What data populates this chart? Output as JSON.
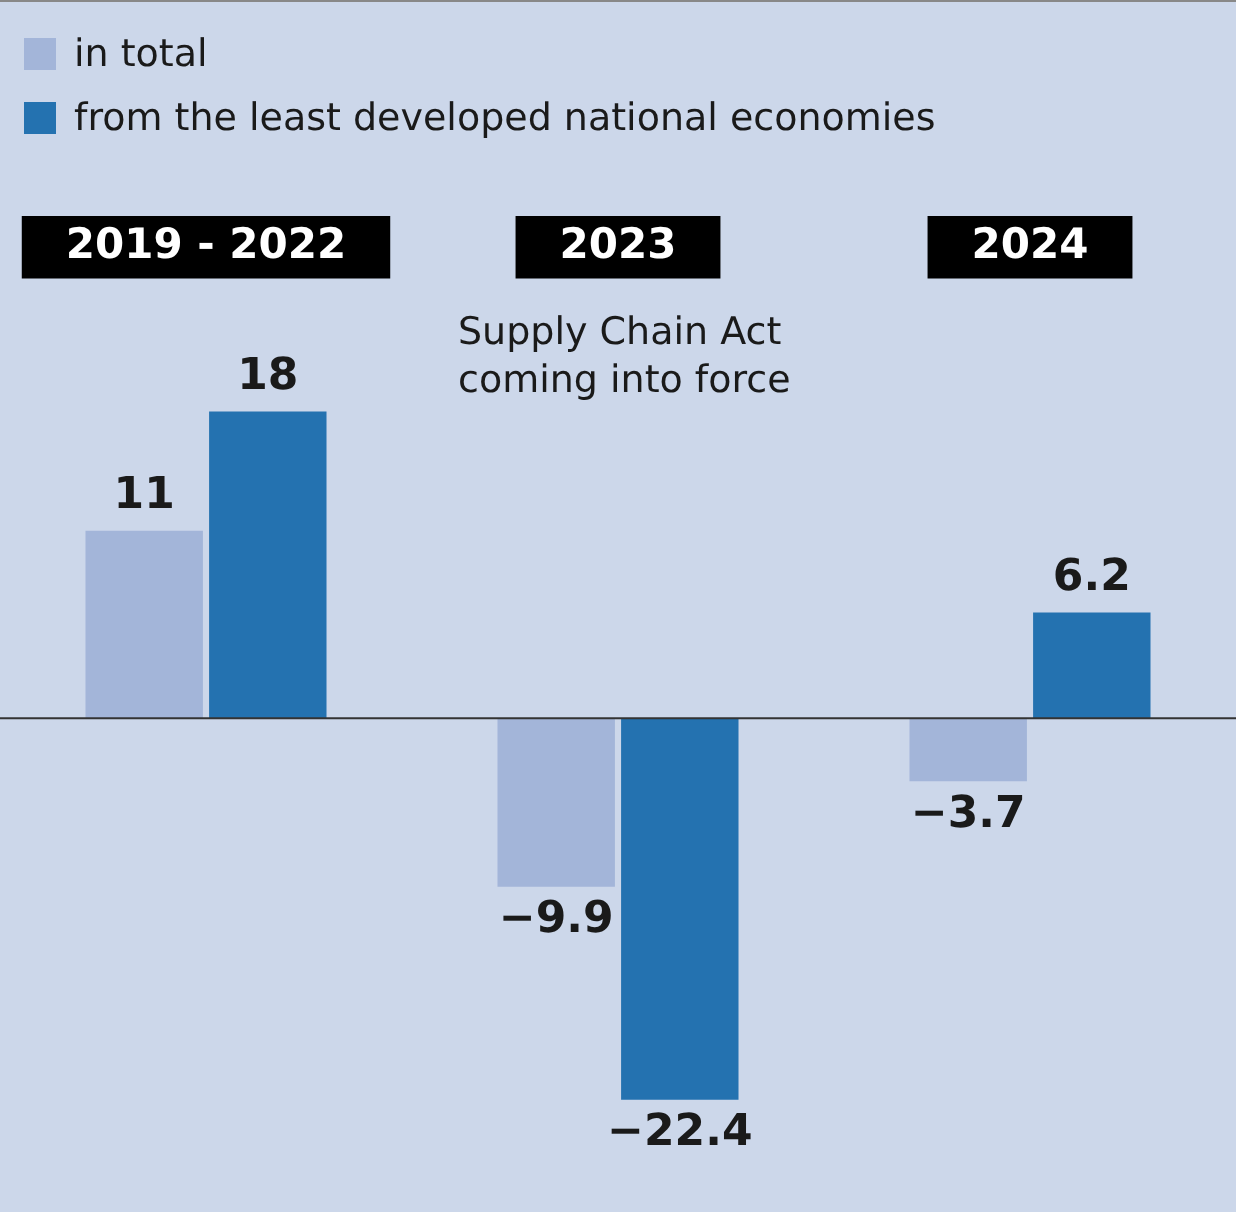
{
  "chart_data": {
    "type": "bar",
    "categories": [
      "2019 - 2022",
      "2023",
      "2024"
    ],
    "series": [
      {
        "name": "in total",
        "color": "#a3b5d9",
        "values": [
          11,
          -9.9,
          -3.7
        ]
      },
      {
        "name": "from the least developed national economies",
        "color": "#2472b0",
        "values": [
          18,
          -22.4,
          6.2
        ]
      }
    ],
    "data_labels": true,
    "legend": "top left",
    "grid": false,
    "annotations": [
      "Supply Chain Act coming into force"
    ]
  }
}
